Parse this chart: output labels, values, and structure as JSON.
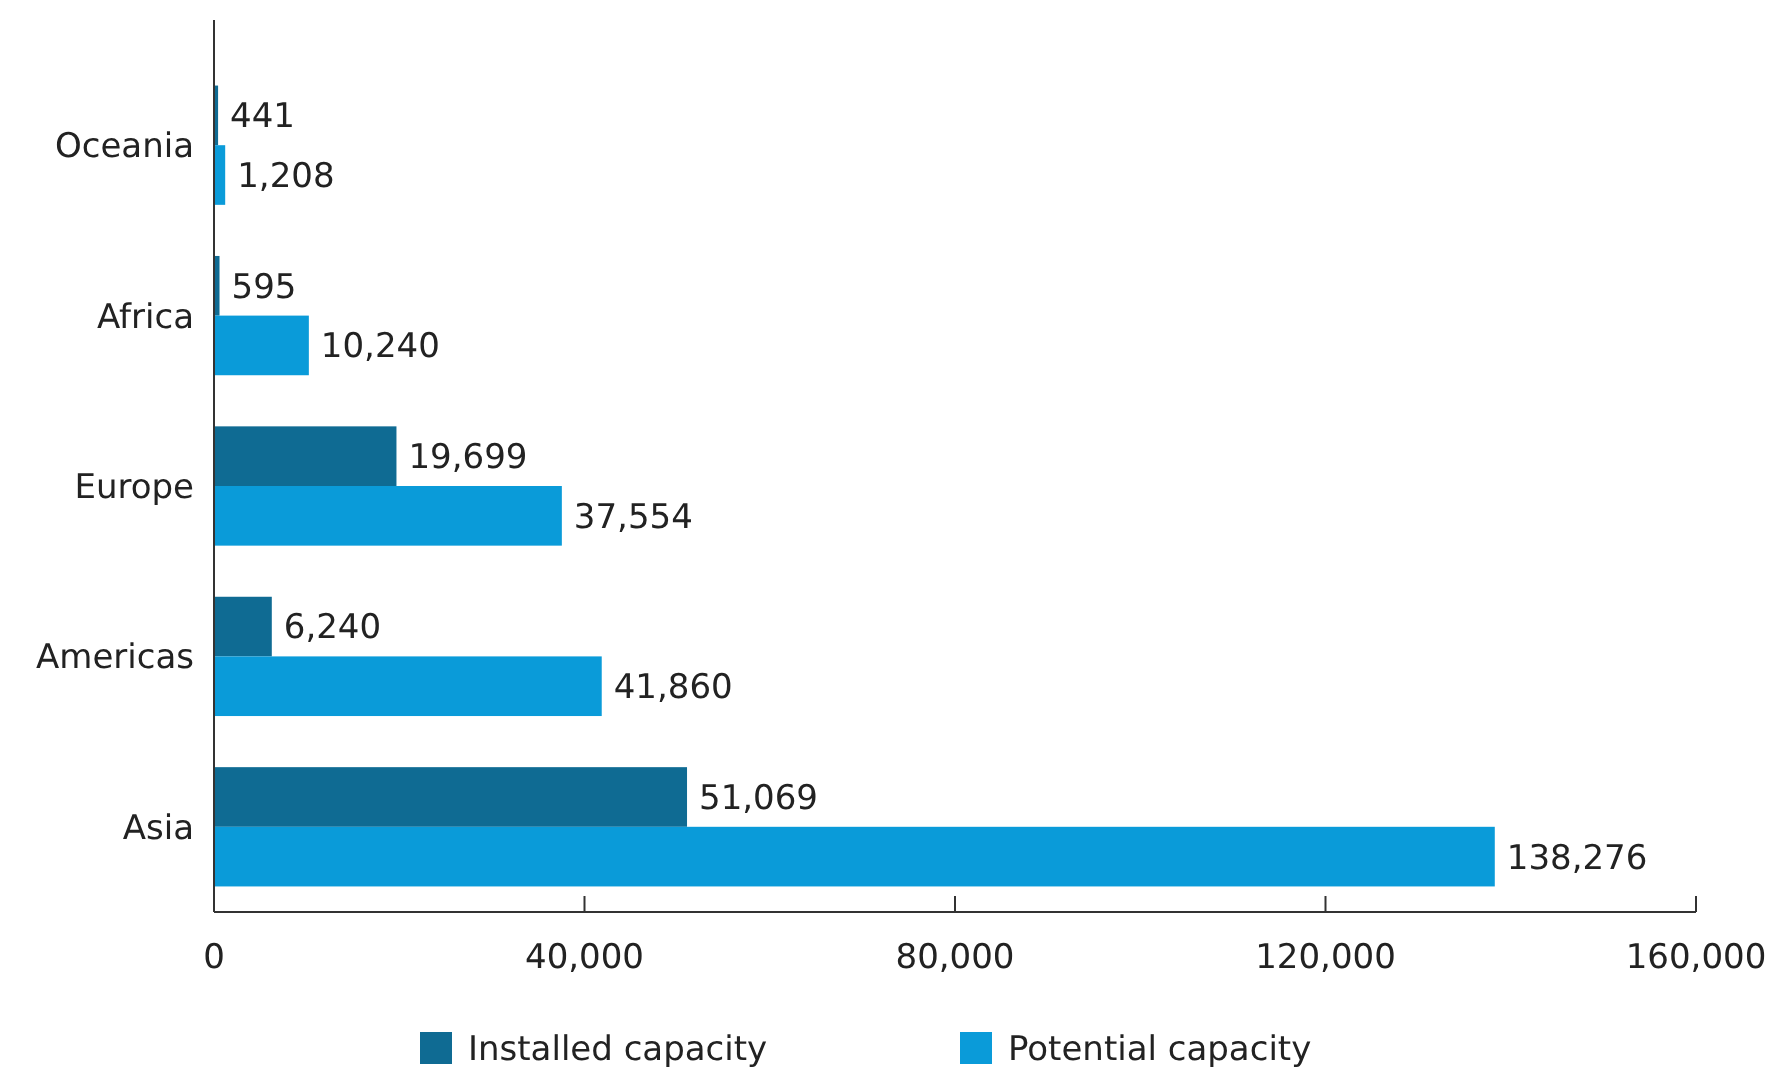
{
  "chart_data": {
    "type": "bar",
    "orientation": "horizontal",
    "categories": [
      "Oceania",
      "Africa",
      "Europe",
      "Americas",
      "Asia"
    ],
    "series": [
      {
        "name": "Installed capacity",
        "color": "#0f6b93",
        "values": [
          441,
          595,
          19699,
          6240,
          51069
        ],
        "value_labels": [
          "441",
          "595",
          "19,699",
          "6,240",
          "51,069"
        ]
      },
      {
        "name": "Potential capacity",
        "color": "#0a9bd9",
        "values": [
          1208,
          10240,
          37554,
          41860,
          138276
        ],
        "value_labels": [
          "1,208",
          "10,240",
          "37,554",
          "41,860",
          "138,276"
        ]
      }
    ],
    "xlim": [
      0,
      160000
    ],
    "xticks": [
      0,
      {
        "value": 40000,
        "label": "40,000"
      },
      {
        "value": 80000,
        "label": "80,000"
      },
      {
        "value": 120000,
        "label": "120,000"
      },
      {
        "value": 160000,
        "label": "160,000"
      }
    ],
    "grid": false,
    "legend": "bottom"
  }
}
